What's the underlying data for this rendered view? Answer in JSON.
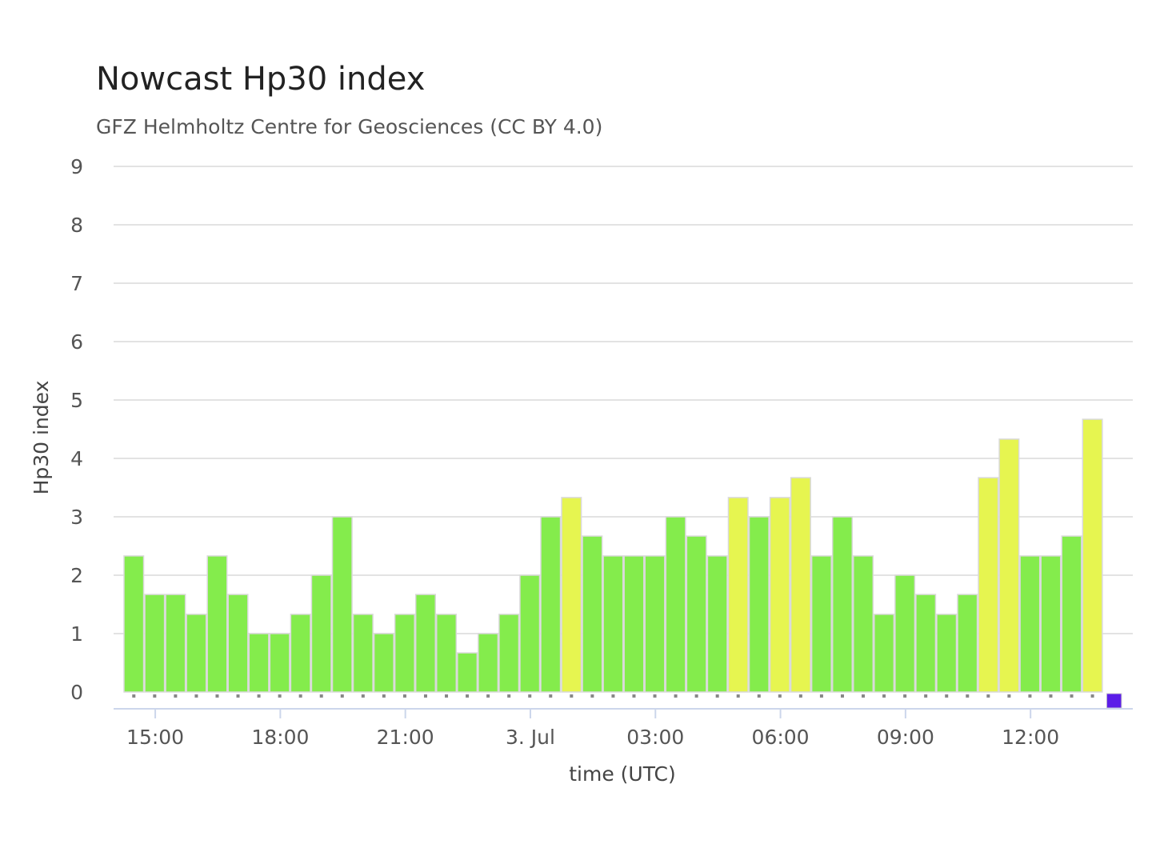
{
  "chart_data": {
    "type": "bar",
    "title": "Nowcast Hp30 index",
    "subtitle": "GFZ Helmholtz Centre for Geosciences (CC BY 4.0)",
    "xlabel": "time (UTC)",
    "ylabel": "Hp30 index",
    "ylim": [
      0,
      9
    ],
    "yticks": [
      "0",
      "1",
      "2",
      "3",
      "4",
      "5",
      "6",
      "7",
      "8",
      "9"
    ],
    "xticks": [
      {
        "label": "15:00",
        "x": 1.5
      },
      {
        "label": "18:00",
        "x": 7.5
      },
      {
        "label": "21:00",
        "x": 13.5
      },
      {
        "label": "3. Jul",
        "x": 19.5
      },
      {
        "label": "03:00",
        "x": 25.5
      },
      {
        "label": "06:00",
        "x": 31.5
      },
      {
        "label": "09:00",
        "x": 37.5
      },
      {
        "label": "12:00",
        "x": 43.5
      }
    ],
    "grid": true,
    "legend": "none",
    "colors": {
      "low": "#84ec4c",
      "moderate": "#e6f550",
      "pending": "#5b1de8",
      "grid": "#e3e3e3",
      "axis": "#ccd6eb"
    },
    "values": [
      2.33,
      1.67,
      1.67,
      1.33,
      2.33,
      1.67,
      1.0,
      1.0,
      1.33,
      2.0,
      3.0,
      1.33,
      1.0,
      1.33,
      1.67,
      1.33,
      0.67,
      1.0,
      1.33,
      2.0,
      3.0,
      3.33,
      2.67,
      2.33,
      2.33,
      2.33,
      3.0,
      2.67,
      2.33,
      3.33,
      3.0,
      3.33,
      3.67,
      2.33,
      3.0,
      2.33,
      1.33,
      2.0,
      1.67,
      1.33,
      1.67,
      3.67,
      4.33,
      2.33,
      2.33,
      2.67,
      4.67,
      0
    ]
  }
}
